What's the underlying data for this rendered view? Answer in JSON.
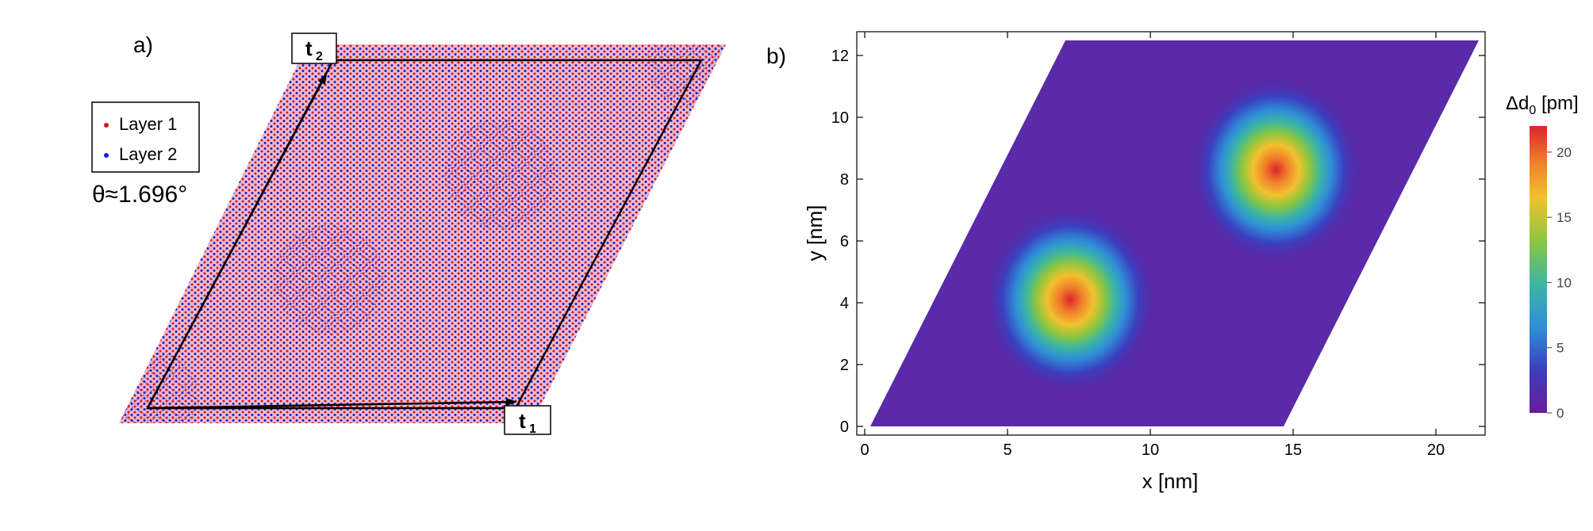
{
  "panel_a": {
    "label": "a)",
    "legend": [
      {
        "label": "Layer 1",
        "color": "#e0101e"
      },
      {
        "label": "Layer 2",
        "color": "#1a1ad8"
      }
    ],
    "theta": "θ≈1.696°",
    "vector_t1": {
      "main": "t",
      "sub": "1"
    },
    "vector_t2": {
      "main": "t",
      "sub": "2"
    }
  },
  "panel_b": {
    "label": "b)"
  },
  "chart_data": {
    "type": "heatmap",
    "title": "",
    "xlabel": "x [nm]",
    "ylabel": "y [nm]",
    "xlim": [
      -0.5,
      21.8
    ],
    "ylim": [
      -0.3,
      12.7
    ],
    "xticks": [
      0,
      5,
      10,
      15,
      20
    ],
    "yticks": [
      0,
      2,
      4,
      6,
      8,
      10,
      12
    ],
    "colorbar": {
      "label": "Δd",
      "label_sub": "0",
      "label_unit": " [pm]",
      "ticks": [
        0,
        5,
        10,
        15,
        20
      ],
      "range": [
        0,
        22
      ],
      "colormap": [
        "#6a1b9a",
        "#3a3fbf",
        "#2f8fd8",
        "#3cb6a0",
        "#8cc63f",
        "#f2c12e",
        "#f07b2a",
        "#d9262c"
      ]
    },
    "supercell": {
      "t1": [
        14.3,
        0.0
      ],
      "t2": [
        7.15,
        12.4
      ]
    },
    "peaks": [
      {
        "x": 7.2,
        "y": 4.1,
        "value": 22
      },
      {
        "x": 14.4,
        "y": 8.3,
        "value": 22
      }
    ],
    "peak_radius_nm": 3.0,
    "minimum_value": 0
  }
}
